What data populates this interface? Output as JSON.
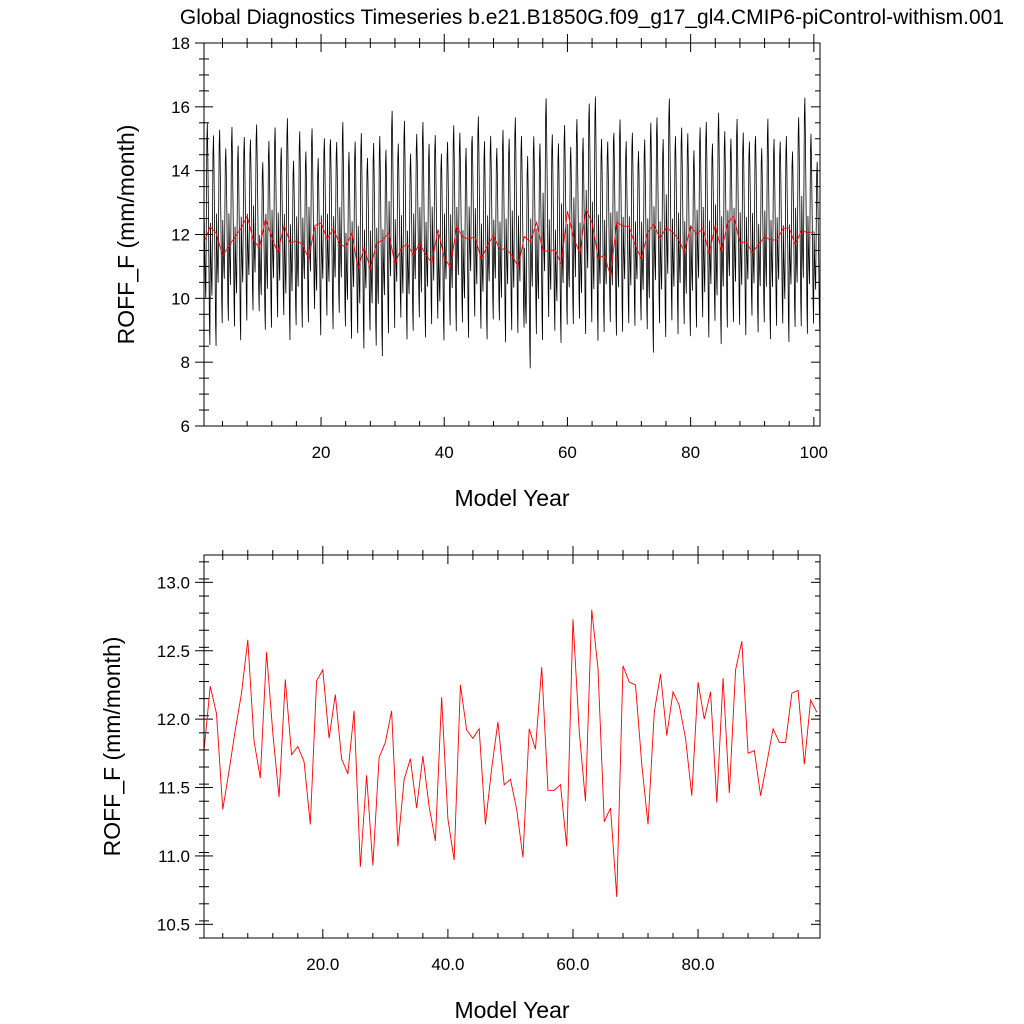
{
  "figure_title": "Global Diagnostics Timeseries b.e21.B1850G.f09_g17_gl4.CMIP6-piControl-withism.001",
  "chart_data": [
    {
      "type": "line",
      "xlabel": "Model Year",
      "ylabel": "ROFF_F (mm/month)",
      "xlim": [
        1,
        101
      ],
      "ylim": [
        6,
        18
      ],
      "xticks": [
        20,
        40,
        60,
        80,
        100
      ],
      "xtick_labels": [
        "20",
        "40",
        "60",
        "80",
        "100"
      ],
      "yticks": [
        6,
        8,
        10,
        12,
        14,
        16,
        18
      ],
      "ytick_labels": [
        "6",
        "8",
        "10",
        "12",
        "14",
        "16",
        "18"
      ],
      "monthly_series": {
        "color": "#000000",
        "start_year": 1,
        "seasonal_min": [
          8.5,
          8.6,
          9.2,
          9.4,
          9.1,
          8.8,
          9.3,
          9.5,
          9.6,
          8.9,
          9.1,
          9.3,
          9.5,
          8.6,
          9.2,
          9.0,
          9.3,
          9.6,
          8.9,
          9.4,
          9.1,
          9.5,
          9.2,
          8.7,
          9.0,
          8.4,
          9.1,
          8.5,
          8.3,
          8.9,
          9.2,
          9.4,
          8.6,
          9.0,
          9.3,
          8.8,
          9.1,
          9.4,
          8.6,
          9.2,
          8.9,
          9.3,
          8.7,
          9.5,
          9.0,
          8.8,
          9.3,
          9.4,
          8.6,
          9.1,
          8.9,
          9.2,
          7.8,
          9.0,
          8.7,
          9.3,
          9.0,
          8.5,
          9.2,
          9.1,
          9.4,
          8.8,
          9.3,
          8.6,
          9.0,
          9.2,
          8.9,
          8.9,
          9.3,
          9.1,
          9.4,
          9.0,
          8.4,
          9.2,
          8.9,
          9.3,
          9.0,
          9.2,
          8.7,
          9.1,
          9.3,
          8.8,
          9.2,
          8.6,
          9.0,
          9.3,
          9.1,
          8.9,
          9.4,
          9.0,
          9.2,
          8.8,
          9.1,
          9.3,
          8.6,
          9.2,
          9.1,
          9.0,
          9.2,
          9.1
        ],
        "seasonal_max": [
          15.5,
          15.0,
          15.3,
          14.6,
          15.4,
          14.7,
          15.1,
          14.9,
          15.5,
          14.2,
          15.0,
          15.3,
          14.8,
          15.6,
          14.4,
          15.2,
          14.7,
          15.3,
          14.5,
          15.0,
          15.1,
          14.9,
          15.4,
          14.6,
          14.8,
          15.2,
          14.3,
          14.9,
          15.0,
          14.7,
          15.8,
          14.9,
          15.5,
          14.6,
          15.1,
          15.6,
          14.8,
          15.2,
          14.5,
          15.0,
          15.4,
          15.3,
          14.7,
          15.2,
          15.7,
          14.8,
          15.1,
          14.6,
          15.3,
          14.9,
          15.7,
          15.0,
          14.5,
          15.0,
          14.9,
          16.2,
          15.2,
          14.8,
          15.5,
          14.7,
          15.7,
          15.0,
          16.2,
          16.3,
          15.1,
          14.9,
          15.3,
          15.6,
          14.8,
          15.2,
          14.5,
          15.0,
          15.4,
          15.7,
          14.9,
          16.3,
          15.0,
          15.4,
          15.1,
          14.7,
          15.3,
          15.6,
          14.8,
          15.9,
          15.2,
          15.1,
          15.6,
          15.3,
          14.9,
          15.2,
          14.7,
          15.5,
          15.0,
          14.8,
          15.1,
          14.5,
          15.7,
          16.2,
          15.2,
          14.2
        ]
      },
      "annual_series": {
        "color": "#ff0000",
        "x": [
          1,
          2,
          3,
          4,
          5,
          6,
          7,
          8,
          9,
          10,
          11,
          12,
          13,
          14,
          15,
          16,
          17,
          18,
          19,
          20,
          21,
          22,
          23,
          24,
          25,
          26,
          27,
          28,
          29,
          30,
          31,
          32,
          33,
          34,
          35,
          36,
          37,
          38,
          39,
          40,
          41,
          42,
          43,
          44,
          45,
          46,
          47,
          48,
          49,
          50,
          51,
          52,
          53,
          54,
          55,
          56,
          57,
          58,
          59,
          60,
          61,
          62,
          63,
          64,
          65,
          66,
          67,
          68,
          69,
          70,
          71,
          72,
          73,
          74,
          75,
          76,
          77,
          78,
          79,
          80,
          81,
          82,
          83,
          84,
          85,
          86,
          87,
          88,
          89,
          90,
          91,
          92,
          93,
          94,
          95,
          96,
          97,
          98,
          99,
          100
        ],
        "y": [
          11.77,
          12.24,
          12.04,
          11.34,
          11.62,
          11.92,
          12.19,
          12.58,
          11.84,
          11.57,
          12.49,
          11.9,
          11.43,
          12.29,
          11.74,
          11.8,
          11.69,
          11.23,
          12.28,
          12.36,
          11.86,
          12.18,
          11.71,
          11.6,
          12.06,
          10.92,
          11.59,
          10.93,
          11.72,
          11.83,
          12.06,
          11.07,
          11.56,
          11.71,
          11.35,
          11.73,
          11.36,
          11.11,
          12.16,
          11.27,
          10.97,
          12.25,
          11.92,
          11.86,
          11.93,
          11.23,
          11.64,
          11.98,
          11.52,
          11.56,
          11.34,
          10.99,
          11.93,
          11.78,
          12.38,
          11.48,
          11.48,
          11.52,
          11.07,
          12.73,
          11.91,
          11.4,
          12.8,
          12.37,
          11.25,
          11.35,
          10.7,
          12.39,
          12.27,
          12.25,
          11.67,
          11.23,
          12.05,
          12.33,
          11.88,
          12.2,
          12.1,
          11.86,
          11.44,
          12.27,
          12.0,
          12.2,
          11.39,
          12.3,
          11.46,
          12.36,
          12.57,
          11.75,
          11.77,
          11.44,
          11.68,
          11.93,
          11.83,
          11.83,
          12.19,
          12.21,
          11.67,
          12.14,
          12.05,
          12.09
        ]
      }
    },
    {
      "type": "line",
      "xlabel": "Model Year",
      "ylabel": "ROFF_F (mm/month)",
      "xlim": [
        1,
        99.5
      ],
      "ylim": [
        10.4,
        13.2
      ],
      "xticks": [
        20,
        40,
        60,
        80
      ],
      "xtick_labels": [
        "20.0",
        "40.0",
        "60.0",
        "80.0"
      ],
      "yticks": [
        10.5,
        11.0,
        11.5,
        12.0,
        12.5,
        13.0
      ],
      "ytick_labels": [
        "10.5",
        "11.0",
        "11.5",
        "12.0",
        "12.5",
        "13.0"
      ],
      "series": [
        {
          "color": "#ff0000",
          "x": [
            1,
            2,
            3,
            4,
            5,
            6,
            7,
            8,
            9,
            10,
            11,
            12,
            13,
            14,
            15,
            16,
            17,
            18,
            19,
            20,
            21,
            22,
            23,
            24,
            25,
            26,
            27,
            28,
            29,
            30,
            31,
            32,
            33,
            34,
            35,
            36,
            37,
            38,
            39,
            40,
            41,
            42,
            43,
            44,
            45,
            46,
            47,
            48,
            49,
            50,
            51,
            52,
            53,
            54,
            55,
            56,
            57,
            58,
            59,
            60,
            61,
            62,
            63,
            64,
            65,
            66,
            67,
            68,
            69,
            70,
            71,
            72,
            73,
            74,
            75,
            76,
            77,
            78,
            79,
            80,
            81,
            82,
            83,
            84,
            85,
            86,
            87,
            88,
            89,
            90,
            91,
            92,
            93,
            94,
            95,
            96,
            97,
            98,
            99,
            100
          ],
          "values": [
            11.77,
            12.24,
            12.04,
            11.34,
            11.62,
            11.92,
            12.19,
            12.58,
            11.84,
            11.57,
            12.49,
            11.9,
            11.43,
            12.29,
            11.74,
            11.8,
            11.69,
            11.23,
            12.28,
            12.36,
            11.86,
            12.18,
            11.71,
            11.6,
            12.06,
            10.92,
            11.59,
            10.93,
            11.72,
            11.83,
            12.06,
            11.07,
            11.56,
            11.71,
            11.35,
            11.73,
            11.36,
            11.11,
            12.16,
            11.27,
            10.97,
            12.25,
            11.92,
            11.86,
            11.93,
            11.23,
            11.64,
            11.98,
            11.52,
            11.56,
            11.34,
            10.99,
            11.93,
            11.78,
            12.38,
            11.48,
            11.48,
            11.52,
            11.07,
            12.73,
            11.91,
            11.4,
            12.8,
            12.37,
            11.25,
            11.35,
            10.7,
            12.39,
            12.27,
            12.25,
            11.67,
            11.23,
            12.05,
            12.33,
            11.88,
            12.2,
            12.1,
            11.86,
            11.44,
            12.27,
            12.0,
            12.2,
            11.39,
            12.3,
            11.46,
            12.36,
            12.57,
            11.75,
            11.77,
            11.44,
            11.68,
            11.93,
            11.83,
            11.83,
            12.19,
            12.21,
            11.67,
            12.14,
            12.05,
            12.09
          ]
        }
      ]
    }
  ]
}
